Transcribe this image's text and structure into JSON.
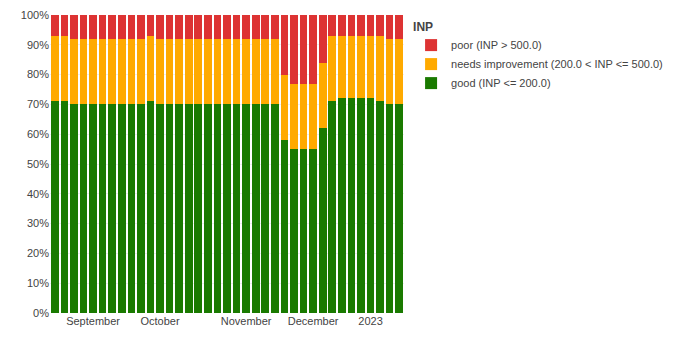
{
  "chart_data": {
    "type": "bar",
    "title": "INP",
    "stacked": true,
    "grid": true,
    "legend": "right",
    "categories": [
      null,
      null,
      null,
      null,
      "September",
      null,
      null,
      null,
      null,
      null,
      null,
      "October",
      null,
      null,
      null,
      null,
      null,
      null,
      null,
      null,
      "November",
      null,
      null,
      null,
      null,
      null,
      null,
      "December",
      null,
      null,
      null,
      null,
      null,
      "2023",
      null,
      null,
      null
    ],
    "series": [
      {
        "name": "good (INP <= 200.0)",
        "color": "#1a7a00",
        "values": [
          71,
          71,
          70,
          70,
          70,
          70,
          70,
          70,
          70,
          70,
          71,
          70,
          70,
          70,
          70,
          70,
          70,
          70,
          70,
          70,
          70,
          70,
          70,
          70,
          58,
          55,
          55,
          55,
          62,
          71,
          72,
          72,
          72,
          72,
          71,
          70,
          70
        ]
      },
      {
        "name": "needs improvement (200.0 < INP <= 500.0)",
        "color": "#ffaa00",
        "values": [
          22,
          22,
          22,
          22,
          22,
          22,
          22,
          22,
          22,
          22,
          22,
          22,
          22,
          22,
          22,
          22,
          22,
          22,
          22,
          22,
          22,
          22,
          22,
          22,
          22,
          22,
          22,
          22,
          22,
          22,
          21,
          21,
          21,
          21,
          22,
          22,
          22
        ]
      },
      {
        "name": "poor (INP > 500.0)",
        "color": "#dd3333",
        "values": [
          7,
          7,
          8,
          8,
          8,
          8,
          8,
          8,
          8,
          8,
          7,
          8,
          8,
          8,
          8,
          8,
          8,
          8,
          8,
          8,
          8,
          8,
          8,
          8,
          20,
          23,
          23,
          23,
          16,
          7,
          7,
          7,
          7,
          7,
          7,
          8,
          8
        ]
      }
    ],
    "ylim": [
      0,
      100
    ],
    "yticks": [
      {
        "value": 0,
        "label": "0%"
      },
      {
        "value": 10,
        "label": "10%"
      },
      {
        "value": 20,
        "label": "20%"
      },
      {
        "value": 30,
        "label": "30%"
      },
      {
        "value": 40,
        "label": "40%"
      },
      {
        "value": 50,
        "label": "50%"
      },
      {
        "value": 60,
        "label": "60%"
      },
      {
        "value": 70,
        "label": "70%"
      },
      {
        "value": 80,
        "label": "80%"
      },
      {
        "value": 90,
        "label": "90%"
      },
      {
        "value": 100,
        "label": "100%"
      }
    ]
  }
}
